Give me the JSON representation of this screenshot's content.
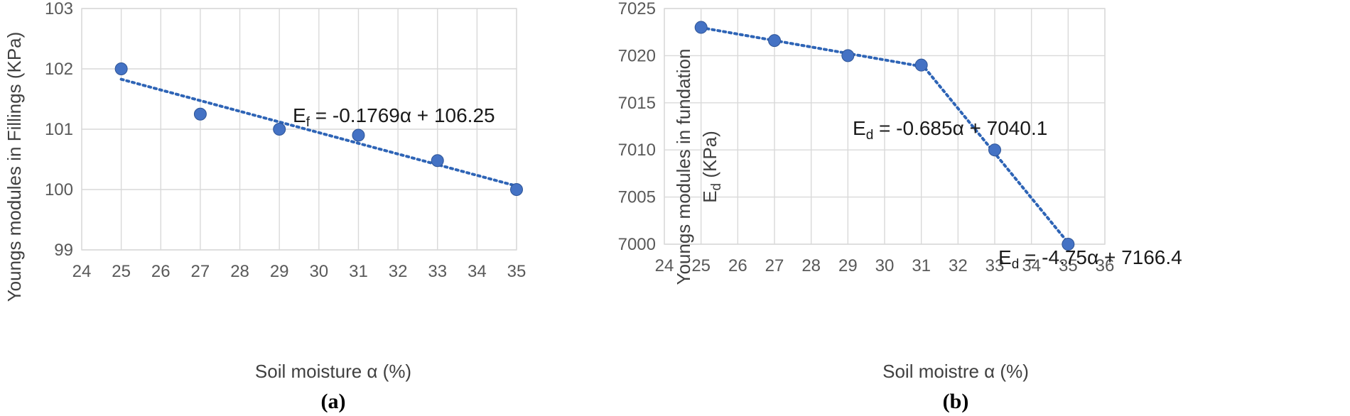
{
  "chart_data": [
    {
      "type": "scatter",
      "panel_label": "(a)",
      "xlabel": "Soil moisture α (%)",
      "ylabel": "Youngs modules in Fillings (KPa)",
      "xlim": [
        24,
        35
      ],
      "ylim": [
        99,
        103
      ],
      "x_ticks": [
        24,
        25,
        26,
        27,
        28,
        29,
        30,
        31,
        32,
        33,
        34,
        35
      ],
      "y_ticks": [
        99,
        100,
        101,
        102,
        103
      ],
      "grid": true,
      "series": [
        {
          "points": [
            {
              "x": 25,
              "y": 102.0
            },
            {
              "x": 27,
              "y": 101.25
            },
            {
              "x": 29,
              "y": 101.0
            },
            {
              "x": 31,
              "y": 100.9
            },
            {
              "x": 33,
              "y": 100.48
            },
            {
              "x": 35,
              "y": 100.0
            }
          ],
          "color": "#4472c4"
        }
      ],
      "trendlines": [
        {
          "equation": {
            "lhs": "E",
            "sub": "f",
            "rhs": " = -0.1769α + 106.25"
          },
          "slope": -0.1769,
          "intercept": 106.25,
          "x_range": [
            25,
            35
          ],
          "color": "#2e64b6"
        }
      ]
    },
    {
      "type": "scatter",
      "panel_label": "(b)",
      "xlabel": "Soil moistre α (%)",
      "ylabel_line1": "Youngs modules in fundation",
      "ylabel_line2": {
        "lhs": "E",
        "sub": "d",
        "rhs": " (KPa)"
      },
      "xlim": [
        24,
        36
      ],
      "ylim": [
        7000,
        7025
      ],
      "x_ticks": [
        24,
        25,
        26,
        27,
        28,
        29,
        30,
        31,
        32,
        33,
        34,
        35,
        36
      ],
      "y_ticks": [
        7000,
        7005,
        7010,
        7015,
        7020,
        7025
      ],
      "grid": true,
      "series": [
        {
          "points": [
            {
              "x": 25,
              "y": 7023.0
            },
            {
              "x": 27,
              "y": 7021.6
            },
            {
              "x": 29,
              "y": 7020.0
            },
            {
              "x": 31,
              "y": 7019.0
            },
            {
              "x": 33,
              "y": 7010.0
            },
            {
              "x": 35,
              "y": 7000.0
            }
          ],
          "color": "#4472c4"
        }
      ],
      "trendlines": [
        {
          "equation": {
            "lhs": "E",
            "sub": "d",
            "rhs": " = -0.685α + 7040.1"
          },
          "slope": -0.685,
          "intercept": 7040.1,
          "x_range": [
            25,
            31
          ],
          "color": "#2e64b6"
        },
        {
          "equation": {
            "lhs": "E",
            "sub": "d",
            "rhs": " = -4.75α + 7166.4"
          },
          "slope": -4.75,
          "intercept": 7166.4,
          "x_range": [
            31,
            35
          ],
          "color": "#2e64b6"
        }
      ]
    }
  ]
}
